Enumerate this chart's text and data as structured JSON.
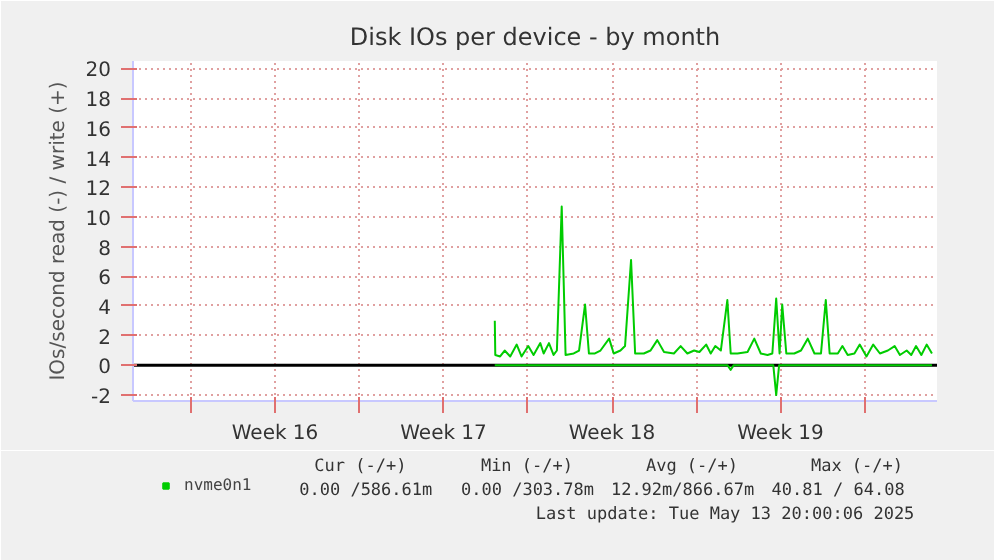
{
  "chart_data": {
    "type": "line",
    "title": "Disk IOs per device - by month",
    "ylabel": "IOs/second read (-) / write (+)",
    "xlim": [
      "2025-04-10T14:24",
      "2025-05-14T00:00"
    ],
    "ylim": [
      -2.4,
      20.5
    ],
    "xticks": [
      {
        "value": "2025-04-13T00:00",
        "label": null
      },
      {
        "value": "2025-04-16T12:00",
        "label": "Week 16"
      },
      {
        "value": "2025-04-20T00:00",
        "label": null
      },
      {
        "value": "2025-04-23T12:00",
        "label": "Week 17"
      },
      {
        "value": "2025-04-27T00:00",
        "label": null
      },
      {
        "value": "2025-04-30T12:00",
        "label": "Week 18"
      },
      {
        "value": "2025-05-04T00:00",
        "label": null
      },
      {
        "value": "2025-05-07T12:00",
        "label": "Week 19"
      },
      {
        "value": "2025-05-11T00:00",
        "label": null
      }
    ],
    "yticks": [
      -2,
      0,
      2,
      4,
      6,
      8,
      10,
      12,
      14,
      16,
      18,
      20
    ],
    "grid": true,
    "legend": "bottom left",
    "marker": "none",
    "line_style": "solid",
    "ref_lines": [
      {
        "axis": "y",
        "value": 0,
        "label": null,
        "color": "#000000"
      }
    ],
    "series": [
      {
        "name": "nvme0n1",
        "color": "#00cc00",
        "x": [
          "2025-04-25T15:07",
          "2025-04-25T15:36",
          "2025-04-25T20:24",
          "2025-04-26T00:58",
          "2025-04-26T06:29",
          "2025-04-26T12:58",
          "2025-04-26T17:46",
          "2025-04-27T00:29",
          "2025-04-27T05:46",
          "2025-04-27T12:29",
          "2025-04-27T15:50",
          "2025-04-27T21:07",
          "2025-04-28T01:41",
          "2025-04-28T05:02",
          "2025-04-28T09:50",
          "2025-04-28T13:41",
          "2025-04-28T21:50",
          "2025-04-29T03:07",
          "2025-04-29T09:07",
          "2025-04-29T12:58",
          "2025-04-29T18:58",
          "2025-04-30T00:29",
          "2025-04-30T09:07",
          "2025-04-30T13:41",
          "2025-04-30T20:24",
          "2025-05-01T00:58",
          "2025-05-01T06:58",
          "2025-05-01T11:02",
          "2025-05-01T19:41",
          "2025-05-02T02:24",
          "2025-05-02T09:07",
          "2025-05-02T15:50",
          "2025-05-03T01:41",
          "2025-05-03T08:24",
          "2025-05-03T15:07",
          "2025-05-03T21:50",
          "2025-05-04T03:07",
          "2025-05-04T09:50",
          "2025-05-04T14:24",
          "2025-05-04T18:58",
          "2025-05-05T00:29",
          "2025-05-05T06:58",
          "2025-05-05T10:19",
          "2025-05-05T17:02",
          "2025-05-06T03:07",
          "2025-05-06T09:50",
          "2025-05-06T16:19",
          "2025-05-06T23:02",
          "2025-05-07T03:50",
          "2025-05-07T07:41",
          "2025-05-07T11:02",
          "2025-05-07T13:41",
          "2025-05-07T17:46",
          "2025-05-08T01:41",
          "2025-05-08T08:24",
          "2025-05-08T15:07",
          "2025-05-08T21:50",
          "2025-05-09T04:19",
          "2025-05-09T09:07",
          "2025-05-09T12:58",
          "2025-05-09T21:07",
          "2025-05-10T01:41",
          "2025-05-10T06:58",
          "2025-05-10T13:41",
          "2025-05-10T18:58",
          "2025-05-11T01:41",
          "2025-05-11T08:24",
          "2025-05-11T15:07",
          "2025-05-11T23:02",
          "2025-05-12T05:46",
          "2025-05-12T11:02",
          "2025-05-12T17:46",
          "2025-05-12T22:19",
          "2025-05-13T03:07",
          "2025-05-13T08:24",
          "2025-05-13T13:41",
          "2025-05-13T18:58"
        ],
        "values": [
          3.0,
          0.7,
          0.6,
          1.0,
          0.6,
          1.4,
          0.6,
          1.3,
          0.7,
          1.5,
          0.8,
          1.5,
          0.7,
          1.0,
          10.7,
          0.7,
          0.8,
          1.0,
          4.1,
          0.8,
          0.8,
          1.0,
          1.8,
          0.8,
          1.0,
          1.3,
          7.1,
          0.8,
          0.8,
          1.0,
          1.7,
          0.9,
          0.8,
          1.3,
          0.8,
          1.0,
          0.9,
          1.4,
          0.8,
          1.3,
          1.0,
          4.4,
          0.8,
          0.8,
          0.9,
          1.8,
          0.8,
          0.7,
          0.8,
          4.5,
          0.8,
          4.1,
          0.8,
          0.8,
          1.0,
          1.8,
          0.8,
          0.8,
          4.4,
          0.8,
          0.8,
          1.3,
          0.7,
          0.8,
          1.4,
          0.6,
          1.4,
          0.8,
          1.0,
          1.3,
          0.7,
          1.0,
          0.7,
          1.3,
          0.7,
          1.4,
          0.8
        ]
      },
      {
        "color": "#00cc00",
        "x": [
          "2025-04-25T15:07",
          "2025-05-05T07:12",
          "2025-05-05T10:19",
          "2025-05-05T13:12",
          "2025-05-07T04:48",
          "2025-05-07T07:41",
          "2025-05-07T10:34",
          "2025-05-13T18:58"
        ],
        "values": [
          0,
          0,
          -0.3,
          0,
          0,
          -2.0,
          0,
          0
        ]
      }
    ],
    "annotations": [
      "Cur (-/+)",
      "Min (-/+)",
      "Avg (-/+)",
      "Max (-/+)",
      "0.00 /586.61m",
      "0.00 /303.78m",
      "12.92m/866.67m",
      "40.81 / 64.08",
      "Last update: Tue May 13 20:00:06 2025"
    ]
  }
}
